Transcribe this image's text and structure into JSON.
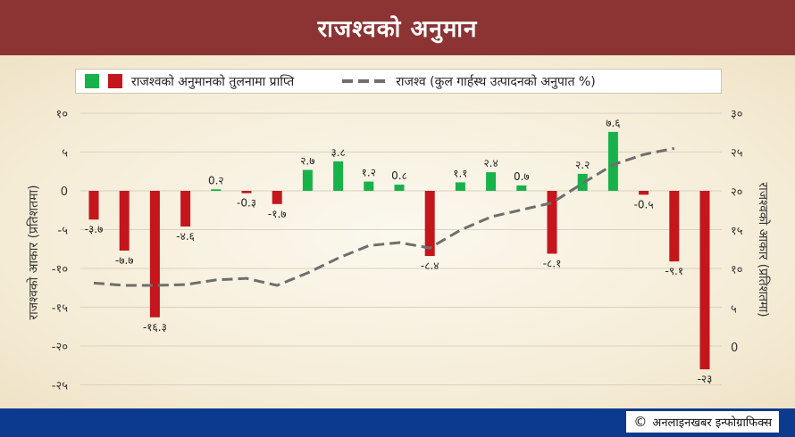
{
  "header": {
    "title": "राजश्वको अनुमान"
  },
  "legend": {
    "bar_label": "राजश्वको अनुमानको तुलनामा प्राप्ति",
    "line_label": "राजश्व (कुल गार्हस्थ उत्पादनको अनुपात %)"
  },
  "footer": {
    "credit": "अनलाइनखबर इन्फोग्राफिक्स",
    "copyright_symbol": "©"
  },
  "chart_data": {
    "type": "bar",
    "colors": {
      "positive": "#18b24b",
      "negative": "#c4161c",
      "line": "#6e6e6e",
      "grid": "#d9d2bf"
    },
    "y_left": {
      "label": "राजश्वको आकार (प्रतिशतमा)",
      "range": [
        -25,
        10
      ],
      "ticks": [
        10,
        5,
        0,
        -5,
        -10,
        -15,
        -20,
        -25
      ],
      "tick_labels": [
        "१०",
        "५",
        "0",
        "-५",
        "-१०",
        "-१५",
        "-२०",
        "-२५"
      ]
    },
    "y_right": {
      "label": "राजश्वको आकार (प्रतिशतमा)",
      "range": [
        0,
        30
      ],
      "ticks": [
        30,
        25,
        20,
        15,
        10,
        5,
        0
      ],
      "tick_labels": [
        "३०",
        "२५",
        "२०",
        "१५",
        "१०",
        "५",
        "0"
      ]
    },
    "series": [
      {
        "name": "राजश्वको अनुमानको तुलनामा प्राप्ति",
        "kind": "bar",
        "values": [
          -3.7,
          -7.7,
          -16.3,
          -4.6,
          0.2,
          -0.3,
          -1.7,
          2.7,
          3.8,
          1.2,
          0.8,
          -8.4,
          1.1,
          2.4,
          0.7,
          -8.1,
          2.2,
          7.6,
          -0.5,
          -9.1,
          -23
        ],
        "labels": [
          "-३.७",
          "-७.७",
          "-१६.३",
          "-४.६",
          "0.२",
          "-0.३",
          "-१.७",
          "२.७",
          "३.८",
          "१.२",
          "0.८",
          "-८.४",
          "१.१",
          "२.४",
          "0.७",
          "-८.१",
          "२.२",
          "७.६",
          "-0.५",
          "-९.१",
          "-२३"
        ]
      },
      {
        "name": "राजश्व (कुल गार्हस्थ उत्पादनको अनुपात %)",
        "kind": "line",
        "axis": "right",
        "values": [
          8.2,
          7.9,
          7.9,
          8.0,
          8.6,
          8.8,
          7.9,
          9.5,
          11.4,
          13.0,
          13.4,
          12.7,
          15.0,
          16.7,
          17.6,
          18.5,
          21.0,
          23.4,
          24.7,
          25.5
        ]
      }
    ],
    "grid": true
  }
}
